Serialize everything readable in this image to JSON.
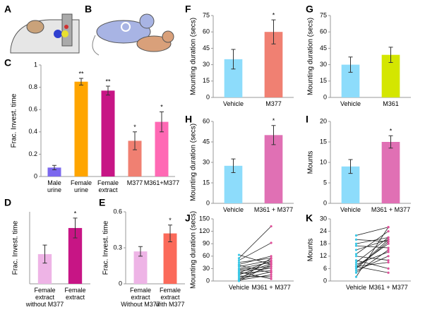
{
  "illustration_labels": [
    "A",
    "B"
  ],
  "chart_data": [
    {
      "type": "bar",
      "panel": "C",
      "ylabel": "Frac. Invest. time",
      "categories": [
        "Male\nurine",
        "Female\nurine",
        "Female\nextract",
        "M377",
        "M361+M377"
      ],
      "values": [
        0.08,
        0.85,
        0.77,
        0.32,
        0.49
      ],
      "errors": [
        0.02,
        0.03,
        0.04,
        0.08,
        0.09
      ],
      "significance": [
        null,
        "**",
        "**",
        "*",
        "*"
      ],
      "colors": [
        "#7b68ee",
        "#ffa500",
        "#c71585",
        "#f08072",
        "#ff69b4"
      ],
      "ylim": [
        0,
        1
      ],
      "yticks": [
        0,
        0.2,
        0.4,
        0.6,
        0.8,
        1
      ]
    },
    {
      "type": "bar",
      "panel": "D",
      "ylabel": "Frac. Invest. time",
      "categories": [
        "Female extract\nwithout M377",
        "Female\nextract"
      ],
      "values": [
        0.33,
        0.62
      ],
      "errors": [
        0.1,
        0.11
      ],
      "significance": [
        null,
        "*"
      ],
      "colors": [
        "#eeb4e6",
        "#c71585"
      ],
      "ylim": [
        0,
        0.8
      ]
    },
    {
      "type": "bar",
      "panel": "E",
      "ylabel": "Frac. Invest. time",
      "categories": [
        "Female extract\nWithout M377",
        "Female extract\nwith M377"
      ],
      "values": [
        0.27,
        0.42
      ],
      "errors": [
        0.04,
        0.07
      ],
      "significance": [
        null,
        "*"
      ],
      "colors": [
        "#eeb4e6",
        "#fb6a5a"
      ],
      "ylim": [
        0,
        0.6
      ],
      "yticks": [
        0,
        0.3,
        0.6
      ]
    },
    {
      "type": "bar",
      "panel": "F",
      "ylabel": "Mounting duration (secs)",
      "categories": [
        "Vehicle",
        "M377"
      ],
      "values": [
        35,
        60
      ],
      "errors": [
        9,
        11
      ],
      "significance": [
        null,
        "*"
      ],
      "colors": [
        "#8ddcfb",
        "#f08072"
      ],
      "ylim": [
        0,
        75
      ],
      "yticks": [
        0,
        15,
        30,
        45,
        60,
        75
      ]
    },
    {
      "type": "bar",
      "panel": "G",
      "ylabel": "Mounting duration (secs)",
      "categories": [
        "Vehicle",
        "M361"
      ],
      "values": [
        30,
        39
      ],
      "errors": [
        7,
        7
      ],
      "colors": [
        "#8ddcfb",
        "#d4e600"
      ],
      "ylim": [
        0,
        75
      ],
      "yticks": [
        0,
        15,
        30,
        45,
        60,
        75
      ]
    },
    {
      "type": "bar",
      "panel": "H",
      "ylabel": "Mounting duration (secs)",
      "categories": [
        "Vehicle",
        "M361 + M377"
      ],
      "values": [
        27.5,
        50
      ],
      "errors": [
        5,
        7
      ],
      "significance": [
        null,
        "*"
      ],
      "colors": [
        "#8ddcfb",
        "#e070b4"
      ],
      "ylim": [
        0,
        60
      ],
      "yticks": [
        0,
        15,
        30,
        45,
        60
      ]
    },
    {
      "type": "bar",
      "panel": "I",
      "ylabel": "Mounts",
      "categories": [
        "Vehicle",
        "M361 + M377"
      ],
      "values": [
        9,
        15
      ],
      "errors": [
        1.7,
        1.5
      ],
      "significance": [
        null,
        "*"
      ],
      "colors": [
        "#8ddcfb",
        "#e070b4"
      ],
      "ylim": [
        0,
        20
      ],
      "yticks": [
        0,
        5,
        10,
        15,
        20
      ]
    },
    {
      "type": "paired",
      "panel": "J",
      "ylabel": "Mounting duration (secs)",
      "categories": [
        "Vehicle",
        "M361 + M377"
      ],
      "colors": [
        "#3cc8e6",
        "#e0509a"
      ],
      "ylim": [
        0,
        150
      ],
      "yticks": [
        0,
        30,
        60,
        90,
        120,
        150
      ],
      "series": [
        {
          "values": [
            63,
            40
          ]
        },
        {
          "values": [
            55,
            132
          ]
        },
        {
          "values": [
            50,
            92
          ]
        },
        {
          "values": [
            45,
            55
          ]
        },
        {
          "values": [
            40,
            60
          ]
        },
        {
          "values": [
            38,
            20
          ]
        },
        {
          "values": [
            35,
            50
          ]
        },
        {
          "values": [
            30,
            45
          ]
        },
        {
          "values": [
            28,
            35
          ]
        },
        {
          "values": [
            25,
            30
          ]
        },
        {
          "values": [
            20,
            48
          ]
        },
        {
          "values": [
            18,
            25
          ]
        },
        {
          "values": [
            15,
            42
          ]
        },
        {
          "values": [
            12,
            10
          ]
        },
        {
          "values": [
            8,
            35
          ]
        },
        {
          "values": [
            5,
            22
          ]
        },
        {
          "values": [
            3,
            55
          ]
        },
        {
          "values": [
            2,
            15
          ]
        },
        {
          "values": [
            0,
            40
          ]
        },
        {
          "values": [
            22,
            5
          ]
        }
      ]
    },
    {
      "type": "paired",
      "panel": "K",
      "ylabel": "Mounts",
      "categories": [
        "Vehicle",
        "M361 + M377"
      ],
      "colors": [
        "#3cc8e6",
        "#e0509a"
      ],
      "ylim": [
        0,
        30
      ],
      "yticks": [
        0,
        6,
        12,
        18,
        24,
        30
      ],
      "series": [
        {
          "values": [
            22,
            26
          ]
        },
        {
          "values": [
            20,
            19
          ]
        },
        {
          "values": [
            18,
            21
          ]
        },
        {
          "values": [
            17,
            16
          ]
        },
        {
          "values": [
            15,
            20
          ]
        },
        {
          "values": [
            13,
            24
          ]
        },
        {
          "values": [
            12,
            10
          ]
        },
        {
          "values": [
            9,
            21
          ]
        },
        {
          "values": [
            8,
            14
          ]
        },
        {
          "values": [
            7,
            18
          ]
        },
        {
          "values": [
            7,
            9
          ]
        },
        {
          "values": [
            6,
            19
          ]
        },
        {
          "values": [
            6,
            20
          ]
        },
        {
          "values": [
            5,
            12
          ]
        },
        {
          "values": [
            4,
            15
          ]
        },
        {
          "values": [
            2,
            26
          ]
        },
        {
          "values": [
            10,
            6
          ]
        },
        {
          "values": [
            7,
            4
          ]
        }
      ]
    }
  ]
}
